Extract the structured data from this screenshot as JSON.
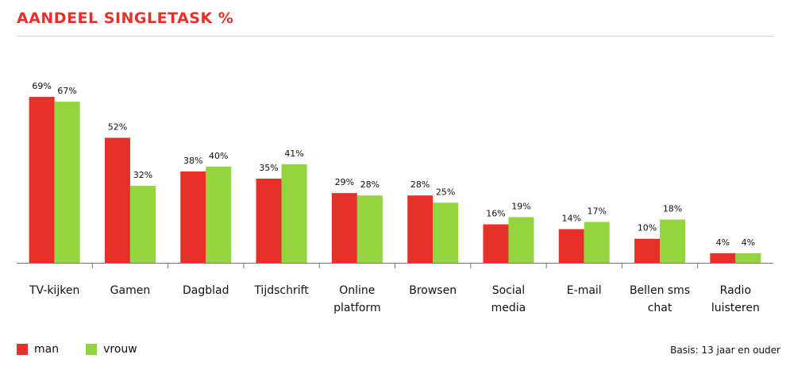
{
  "chart_data": {
    "type": "bar",
    "title": "AANDEEL SINGLETASK %",
    "categories": [
      "TV-kijken",
      "Gamen",
      "Dagblad",
      "Tijdschrift",
      "Online\nplatform",
      "Browsen",
      "Social\nmedia",
      "E-mail",
      "Bellen sms\nchat",
      "Radio\nluisteren"
    ],
    "series": [
      {
        "name": "man",
        "color": "#e8302a",
        "values": [
          69,
          52,
          38,
          35,
          29,
          28,
          16,
          14,
          10,
          4
        ]
      },
      {
        "name": "vrouw",
        "color": "#94d43e",
        "values": [
          67,
          32,
          40,
          41,
          28,
          25,
          19,
          17,
          18,
          4
        ]
      }
    ],
    "value_suffix": "%",
    "ylim": [
      0,
      70
    ],
    "grid": false,
    "legend": "bottom-left"
  },
  "note": "Basis: 13 jaar en ouder"
}
